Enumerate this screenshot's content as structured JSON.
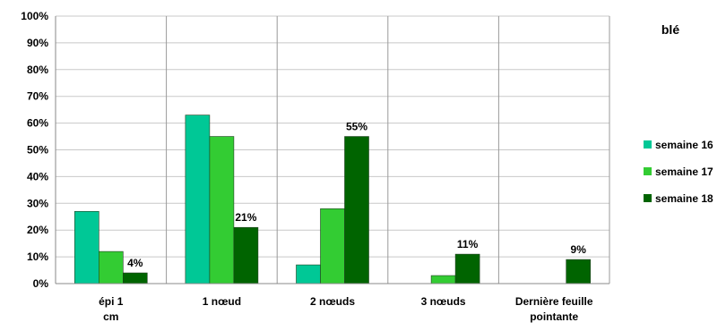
{
  "chart_data": {
    "type": "bar",
    "title": "blé",
    "xlabel": "",
    "ylabel": "",
    "categories": [
      "épi 1 cm",
      "1 nœud",
      "2 nœuds",
      "3 nœuds",
      "Dernière feuille pointante"
    ],
    "series": [
      {
        "name": "semaine 16",
        "color": "#00c896",
        "values": [
          27,
          63,
          7,
          0,
          0
        ]
      },
      {
        "name": "semaine 17",
        "color": "#33cc33",
        "values": [
          12,
          55,
          28,
          3,
          0
        ]
      },
      {
        "name": "semaine 18",
        "color": "#006400",
        "values": [
          4,
          21,
          55,
          11,
          9
        ]
      }
    ],
    "data_labels": [
      {
        "category_index": 0,
        "series_index": 2,
        "text": "4%"
      },
      {
        "category_index": 1,
        "series_index": 2,
        "text": "21%"
      },
      {
        "category_index": 2,
        "series_index": 2,
        "text": "55%"
      },
      {
        "category_index": 3,
        "series_index": 2,
        "text": "11%"
      },
      {
        "category_index": 4,
        "series_index": 2,
        "text": "9%"
      }
    ],
    "ylim": [
      0,
      100
    ],
    "y_ticks": [
      "0%",
      "10%",
      "20%",
      "30%",
      "40%",
      "50%",
      "60%",
      "70%",
      "80%",
      "90%",
      "100%"
    ],
    "grid": true,
    "legend_position": "right"
  }
}
